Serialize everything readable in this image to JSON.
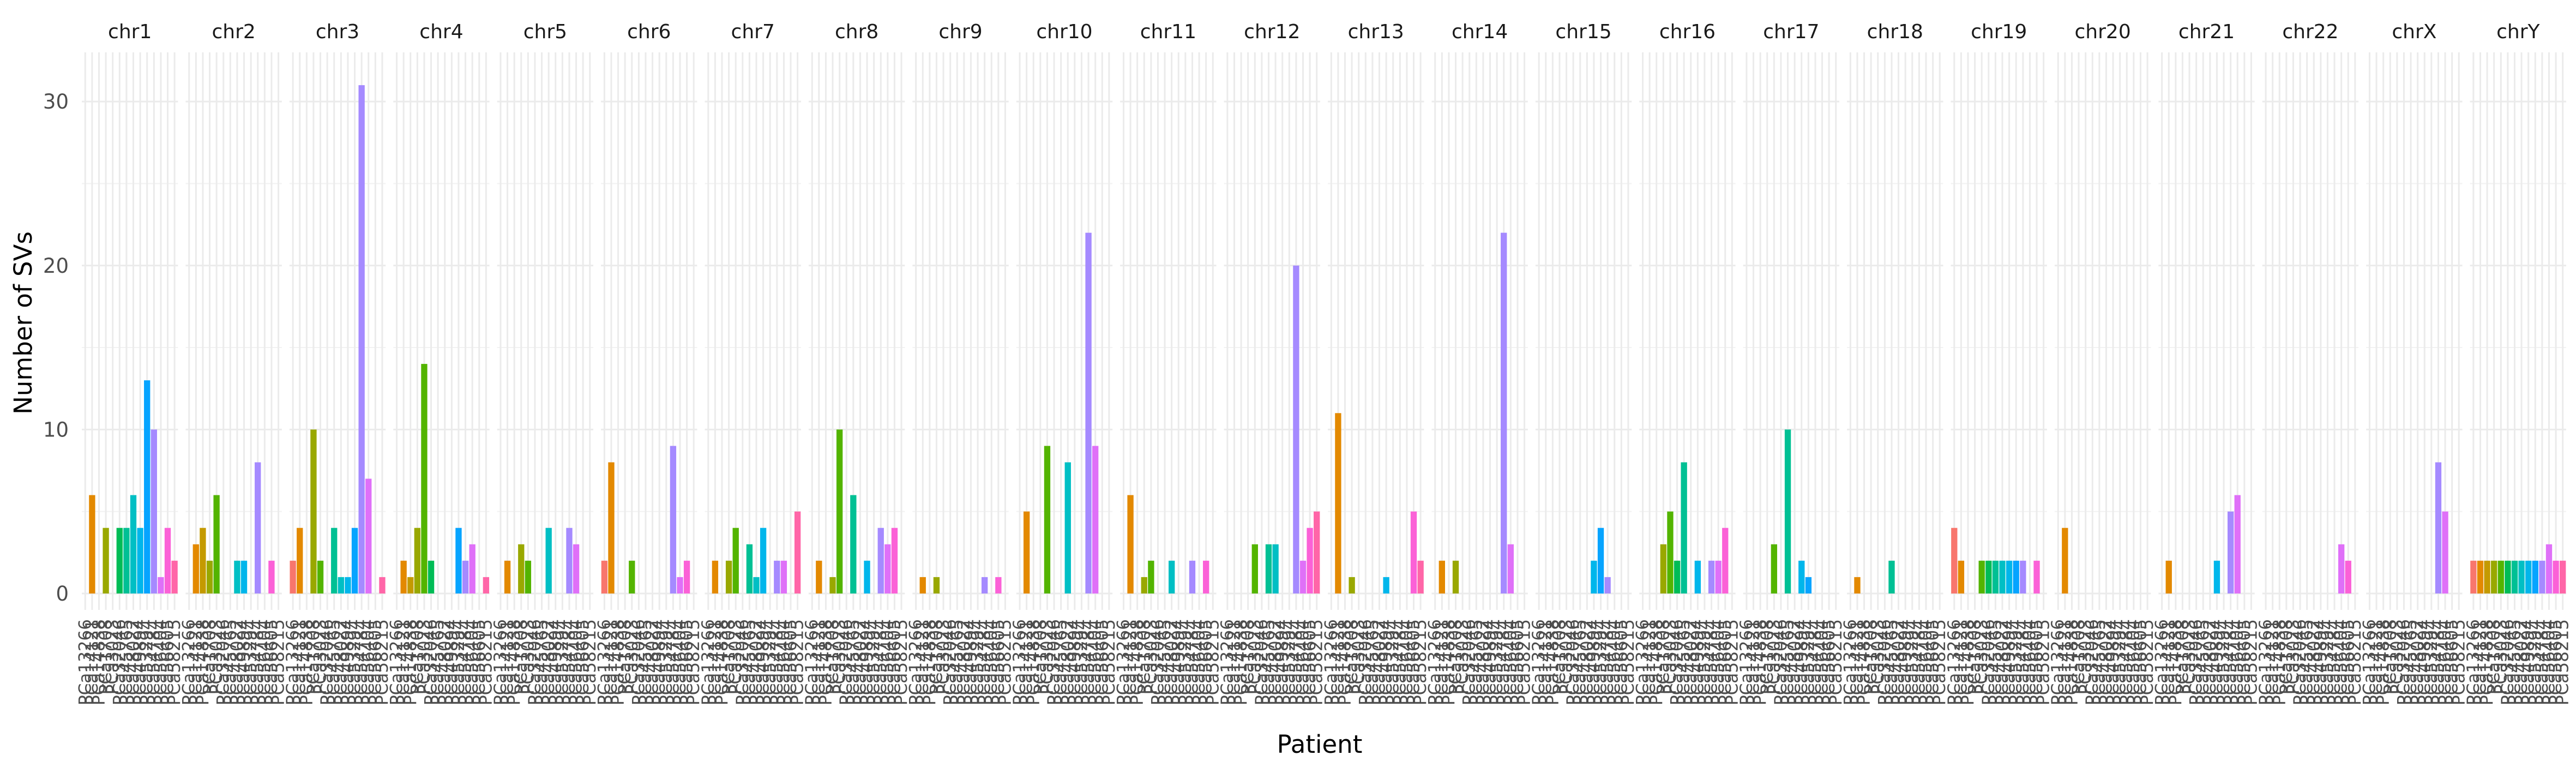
{
  "chart_data": {
    "type": "bar",
    "facet_variable": "chromosome",
    "facets": [
      "chr1",
      "chr2",
      "chr3",
      "chr4",
      "chr5",
      "chr6",
      "chr7",
      "chr8",
      "chr9",
      "chr10",
      "chr11",
      "chr12",
      "chr13",
      "chr14",
      "chr15",
      "chr16",
      "chr17",
      "chr18",
      "chr19",
      "chr20",
      "chr21",
      "chr22",
      "chrX",
      "chrY"
    ],
    "x_tick_labels": [
      "PCa13266",
      "PCa14121",
      "PCa14838",
      "PCa1708",
      "PCa3023",
      "PCa32046",
      "PCa45765",
      "PCa48022",
      "PCa49894",
      "PCa53294",
      "PCa54784",
      "PCa56404",
      "PCa56605",
      "PCa58215"
    ],
    "palette": [
      "#F8766D",
      "#E38900",
      "#C49A00",
      "#99A800",
      "#53B400",
      "#00BC56",
      "#00C094",
      "#00BFC4",
      "#00B6EB",
      "#06A4FF",
      "#A58AFF",
      "#DF70F8",
      "#FB61D7",
      "#FF66A8"
    ],
    "values": {
      "chr1": [
        0,
        6,
        0,
        4,
        0,
        4,
        4,
        6,
        4,
        13,
        10,
        1,
        4,
        2
      ],
      "chr2": [
        0,
        3,
        4,
        2,
        6,
        0,
        0,
        2,
        2,
        0,
        8,
        0,
        2,
        0
      ],
      "chr3": [
        2,
        4,
        0,
        10,
        2,
        0,
        4,
        1,
        1,
        4,
        31,
        7,
        0,
        1
      ],
      "chr4": [
        0,
        2,
        1,
        4,
        14,
        2,
        0,
        0,
        0,
        4,
        2,
        3,
        0,
        1
      ],
      "chr5": [
        0,
        2,
        0,
        3,
        2,
        0,
        0,
        4,
        0,
        0,
        4,
        3,
        0,
        0
      ],
      "chr6": [
        2,
        8,
        0,
        0,
        2,
        0,
        0,
        0,
        0,
        0,
        9,
        1,
        2,
        0
      ],
      "chr7": [
        0,
        2,
        0,
        2,
        4,
        0,
        3,
        1,
        4,
        0,
        2,
        2,
        0,
        5
      ],
      "chr8": [
        0,
        2,
        0,
        1,
        10,
        0,
        6,
        0,
        2,
        0,
        4,
        3,
        4,
        0
      ],
      "chr9": [
        0,
        1,
        0,
        1,
        0,
        0,
        0,
        0,
        0,
        0,
        1,
        0,
        1,
        0
      ],
      "chr10": [
        0,
        5,
        0,
        0,
        9,
        0,
        0,
        8,
        0,
        0,
        22,
        9,
        0,
        0
      ],
      "chr11": [
        0,
        6,
        0,
        1,
        2,
        0,
        0,
        2,
        0,
        0,
        2,
        0,
        2,
        0
      ],
      "chr12": [
        0,
        0,
        0,
        0,
        3,
        0,
        3,
        3,
        0,
        0,
        20,
        2,
        4,
        5
      ],
      "chr13": [
        0,
        11,
        0,
        1,
        0,
        0,
        0,
        0,
        1,
        0,
        0,
        0,
        5,
        2
      ],
      "chr14": [
        0,
        2,
        0,
        2,
        0,
        0,
        0,
        0,
        0,
        0,
        22,
        3,
        0,
        0
      ],
      "chr15": [
        0,
        0,
        0,
        0,
        0,
        0,
        0,
        0,
        2,
        4,
        1,
        0,
        0,
        0
      ],
      "chr16": [
        0,
        0,
        0,
        3,
        5,
        2,
        8,
        0,
        2,
        0,
        2,
        2,
        4,
        0
      ],
      "chr17": [
        0,
        0,
        0,
        0,
        3,
        0,
        10,
        0,
        2,
        1,
        0,
        0,
        0,
        0
      ],
      "chr18": [
        0,
        1,
        0,
        0,
        0,
        0,
        2,
        0,
        0,
        0,
        0,
        0,
        0,
        0
      ],
      "chr19": [
        4,
        2,
        0,
        0,
        2,
        2,
        2,
        2,
        2,
        2,
        2,
        0,
        2,
        0
      ],
      "chr20": [
        0,
        4,
        0,
        0,
        0,
        0,
        0,
        0,
        0,
        0,
        0,
        0,
        0,
        0
      ],
      "chr21": [
        0,
        2,
        0,
        0,
        0,
        0,
        0,
        0,
        2,
        0,
        5,
        6,
        0,
        0
      ],
      "chr22": [
        0,
        0,
        0,
        0,
        0,
        0,
        0,
        0,
        0,
        0,
        0,
        3,
        2,
        0
      ],
      "chrX": [
        0,
        0,
        0,
        0,
        0,
        0,
        0,
        0,
        0,
        0,
        8,
        5,
        0,
        0
      ],
      "chrY": [
        2,
        2,
        2,
        2,
        2,
        2,
        2,
        2,
        2,
        2,
        2,
        3,
        2,
        2
      ]
    },
    "xlabel": "Patient",
    "ylabel": "Number of SVs",
    "yticks": [
      0,
      10,
      20,
      30
    ],
    "ylim": [
      -1,
      33
    ],
    "grid": true,
    "legend": "none"
  }
}
